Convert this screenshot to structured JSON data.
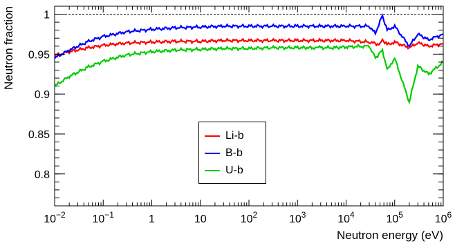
{
  "chart_data": {
    "type": "line",
    "title": "",
    "xlabel": "Neutron energy (eV)",
    "ylabel": "Neutron fraction",
    "xscale": "log",
    "xlim": [
      0.01,
      1000000
    ],
    "ylim": [
      0.76,
      1.01
    ],
    "x_ticks": [
      {
        "value": 0.01,
        "base": "10",
        "exp": "−2"
      },
      {
        "value": 0.1,
        "base": "10",
        "exp": "−1"
      },
      {
        "value": 1,
        "base": "1",
        "exp": ""
      },
      {
        "value": 10,
        "base": "10",
        "exp": ""
      },
      {
        "value": 100,
        "base": "10",
        "exp": "2"
      },
      {
        "value": 1000,
        "base": "10",
        "exp": "3"
      },
      {
        "value": 10000,
        "base": "10",
        "exp": "4"
      },
      {
        "value": 100000,
        "base": "10",
        "exp": "5"
      },
      {
        "value": 1000000,
        "base": "10",
        "exp": "6"
      }
    ],
    "y_ticks": [
      {
        "value": 0.8,
        "label": "0.8"
      },
      {
        "value": 0.85,
        "label": "0.85"
      },
      {
        "value": 0.9,
        "label": "0.9"
      },
      {
        "value": 0.95,
        "label": "0.95"
      },
      {
        "value": 1.0,
        "label": "1"
      }
    ],
    "reference_line": {
      "y": 1.0,
      "style": "dashed"
    },
    "grid": false,
    "legend_position": "center",
    "series": [
      {
        "name": "Li-b",
        "color": "#ff0000",
        "x": [
          0.01,
          0.02,
          0.05,
          0.1,
          0.3,
          1,
          3,
          10,
          30,
          100,
          300,
          1000,
          3000,
          10000,
          30000,
          50000,
          56000,
          70000,
          100000,
          200000,
          300000,
          500000,
          1000000
        ],
        "y": [
          0.948,
          0.953,
          0.958,
          0.961,
          0.964,
          0.965,
          0.966,
          0.966,
          0.967,
          0.967,
          0.967,
          0.967,
          0.967,
          0.967,
          0.965,
          0.962,
          0.968,
          0.962,
          0.965,
          0.958,
          0.964,
          0.96,
          0.963
        ]
      },
      {
        "name": "B-b",
        "color": "#0000ff",
        "x": [
          0.01,
          0.02,
          0.05,
          0.1,
          0.3,
          1,
          3,
          10,
          30,
          100,
          300,
          1000,
          3000,
          10000,
          30000,
          40000,
          56000,
          70000,
          100000,
          200000,
          300000,
          500000,
          1000000
        ],
        "y": [
          0.945,
          0.955,
          0.966,
          0.972,
          0.978,
          0.981,
          0.983,
          0.984,
          0.985,
          0.985,
          0.985,
          0.985,
          0.985,
          0.985,
          0.985,
          0.976,
          0.998,
          0.98,
          0.985,
          0.96,
          0.975,
          0.968,
          0.975
        ]
      },
      {
        "name": "U-b",
        "color": "#00cc00",
        "x": [
          0.01,
          0.02,
          0.05,
          0.1,
          0.3,
          1,
          3,
          10,
          30,
          100,
          300,
          1000,
          2200,
          3000,
          6000,
          10000,
          30000,
          40000,
          56000,
          70000,
          100000,
          200000,
          300000,
          500000,
          1000000
        ],
        "y": [
          0.91,
          0.922,
          0.934,
          0.941,
          0.949,
          0.953,
          0.955,
          0.956,
          0.957,
          0.957,
          0.958,
          0.958,
          0.958,
          0.958,
          0.958,
          0.959,
          0.96,
          0.945,
          0.955,
          0.93,
          0.945,
          0.89,
          0.935,
          0.925,
          0.94
        ]
      }
    ]
  }
}
